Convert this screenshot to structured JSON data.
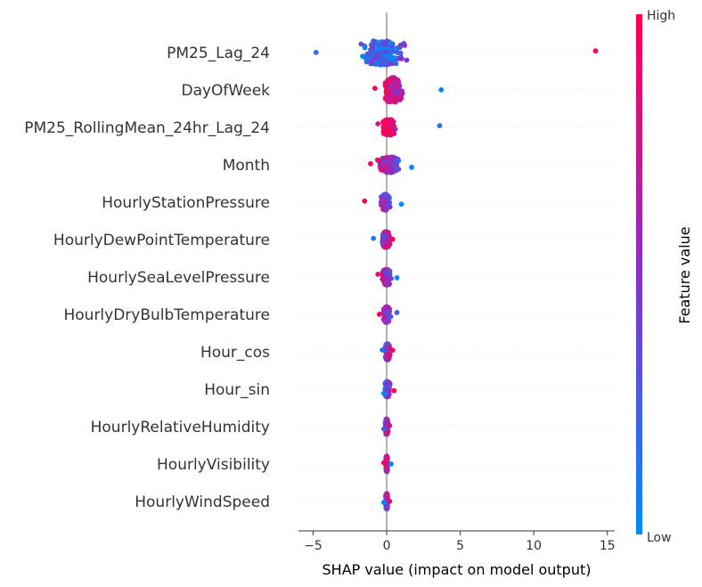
{
  "chart_data": {
    "type": "scatter",
    "subtype": "shap-beeswarm",
    "xlabel": "SHAP value (impact on model output)",
    "xlim": [
      -6,
      15.5
    ],
    "xticks": [
      -5,
      0,
      5,
      10,
      15
    ],
    "features": [
      "PM25_Lag_24",
      "DayOfWeek",
      "PM25_RollingMean_24hr_Lag_24",
      "Month",
      "HourlyStationPressure",
      "HourlyDewPointTemperature",
      "HourlySeaLevelPressure",
      "HourlyDryBulbTemperature",
      "Hour_cos",
      "Hour_sin",
      "HourlyRelativeHumidity",
      "HourlyVisibility",
      "HourlyWindSpeed"
    ],
    "shap_ranges": [
      {
        "feature": "PM25_Lag_24",
        "min": -4.8,
        "max": 14.2,
        "core": [
          -2.5,
          2.0
        ],
        "low_side": "negative"
      },
      {
        "feature": "DayOfWeek",
        "min": -0.8,
        "max": 3.7,
        "core": [
          -0.6,
          1.4
        ],
        "low_side": "positive"
      },
      {
        "feature": "PM25_RollingMean_24hr_Lag_24",
        "min": -0.6,
        "max": 3.6,
        "core": [
          -0.5,
          0.8
        ],
        "low_side": "positive"
      },
      {
        "feature": "Month",
        "min": -1.1,
        "max": 1.7,
        "core": [
          -0.8,
          1.2
        ],
        "low_side": "positive"
      },
      {
        "feature": "HourlyStationPressure",
        "min": -1.5,
        "max": 1.0,
        "core": [
          -0.5,
          0.3
        ],
        "low_side": "positive"
      },
      {
        "feature": "HourlyDewPointTemperature",
        "min": -0.9,
        "max": 0.4,
        "core": [
          -0.5,
          0.4
        ],
        "low_side": "negative"
      },
      {
        "feature": "HourlySeaLevelPressure",
        "min": -0.6,
        "max": 0.7,
        "core": [
          -0.5,
          0.5
        ],
        "low_side": "positive"
      },
      {
        "feature": "HourlyDryBulbTemperature",
        "min": -0.5,
        "max": 0.7,
        "core": [
          -0.4,
          0.4
        ],
        "low_side": "positive"
      },
      {
        "feature": "Hour_cos",
        "min": -0.3,
        "max": 0.4,
        "core": [
          -0.2,
          0.3
        ],
        "low_side": "negative"
      },
      {
        "feature": "Hour_sin",
        "min": -0.2,
        "max": 0.5,
        "core": [
          -0.2,
          0.3
        ],
        "low_side": "negative"
      },
      {
        "feature": "HourlyRelativeHumidity",
        "min": -0.2,
        "max": 0.2,
        "core": [
          -0.15,
          0.15
        ],
        "low_side": "negative"
      },
      {
        "feature": "HourlyVisibility",
        "min": -0.2,
        "max": 0.3,
        "core": [
          -0.1,
          0.1
        ],
        "low_side": "positive"
      },
      {
        "feature": "HourlyWindSpeed",
        "min": -0.2,
        "max": 0.2,
        "core": [
          -0.1,
          0.1
        ],
        "low_side": "negative"
      }
    ],
    "colorbar": {
      "label": "Feature value",
      "high_label": "High",
      "low_label": "Low",
      "low_color": "#008bfb",
      "high_color": "#ff0052"
    },
    "grid": false,
    "zero_line": true
  }
}
